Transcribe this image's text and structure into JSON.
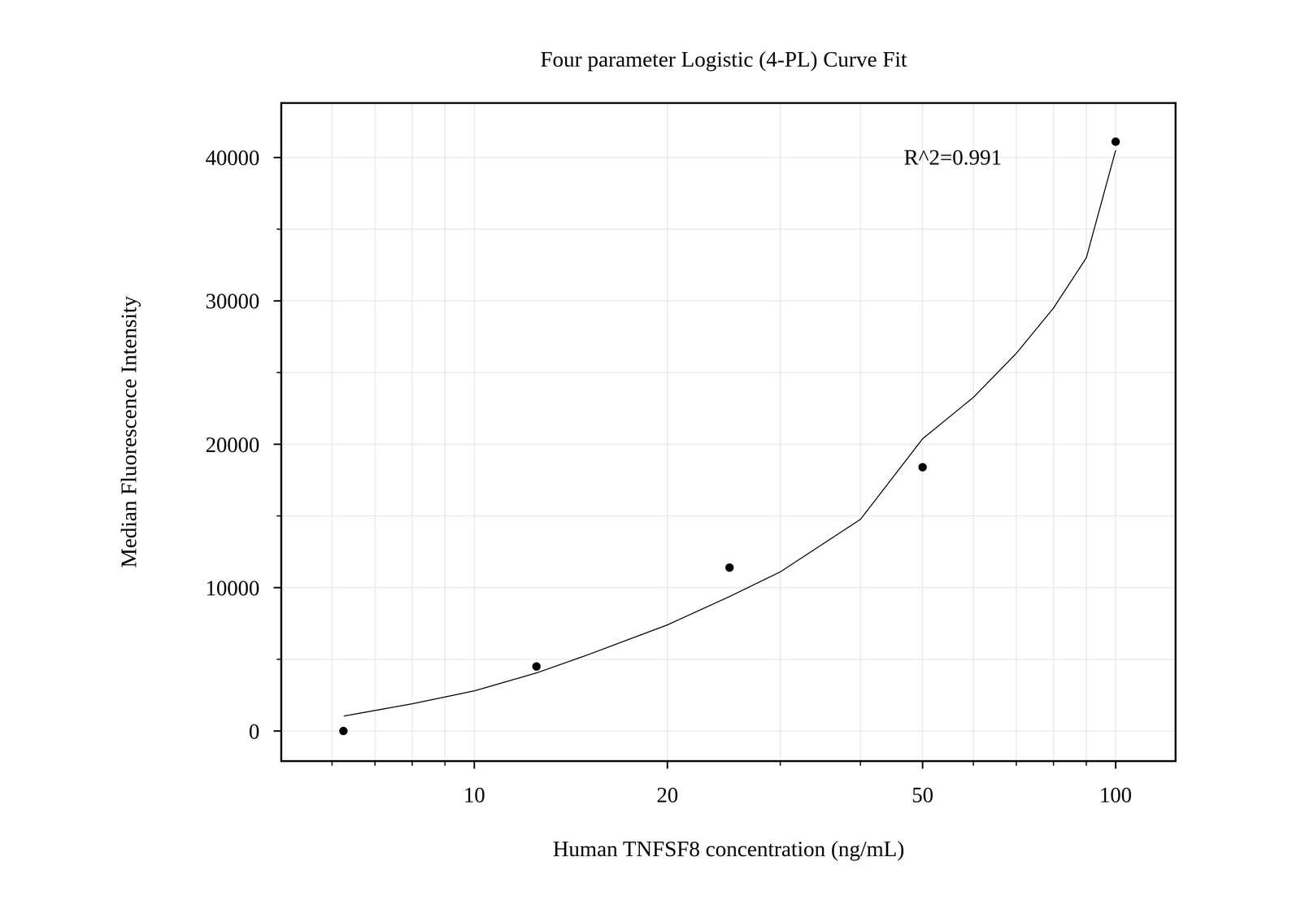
{
  "chart_data": {
    "type": "scatter",
    "title": "Four parameter Logistic (4-PL) Curve Fit",
    "x_label": "Human TNFSF8 concentration (ng/mL)",
    "y_label": "Median Fluorescence Intensity",
    "annotation": "R^2=0.991",
    "log": "x",
    "grid": true,
    "xlim": [
      5,
      124
    ],
    "xticks": [
      10,
      20,
      50,
      100
    ],
    "xminor_ticks": [
      6,
      7,
      8,
      9,
      30,
      40,
      60,
      70,
      80,
      90
    ],
    "ylim": [
      -2100,
      43800
    ],
    "yticks": [
      0,
      10000,
      20000,
      30000,
      40000
    ],
    "yminor_ticks": [
      5000,
      15000,
      25000,
      35000
    ],
    "series": [
      {
        "type": "scatter",
        "marker": "circle",
        "color": "#000000",
        "x": [
          6.25,
          12.5,
          25,
          50,
          100
        ],
        "values": [
          0,
          4500,
          11400,
          18400,
          41100
        ]
      },
      {
        "type": "line",
        "line_style": "solid",
        "color": "#000000",
        "x": [
          6.26,
          8,
          10,
          12.5,
          15,
          20,
          25,
          30,
          40,
          50,
          60,
          70,
          80,
          90,
          100
        ],
        "values": [
          1040,
          1900,
          2800,
          4050,
          5300,
          7400,
          9380,
          11100,
          14760,
          20380,
          23270,
          26340,
          29500,
          33000,
          40500
        ]
      }
    ]
  }
}
